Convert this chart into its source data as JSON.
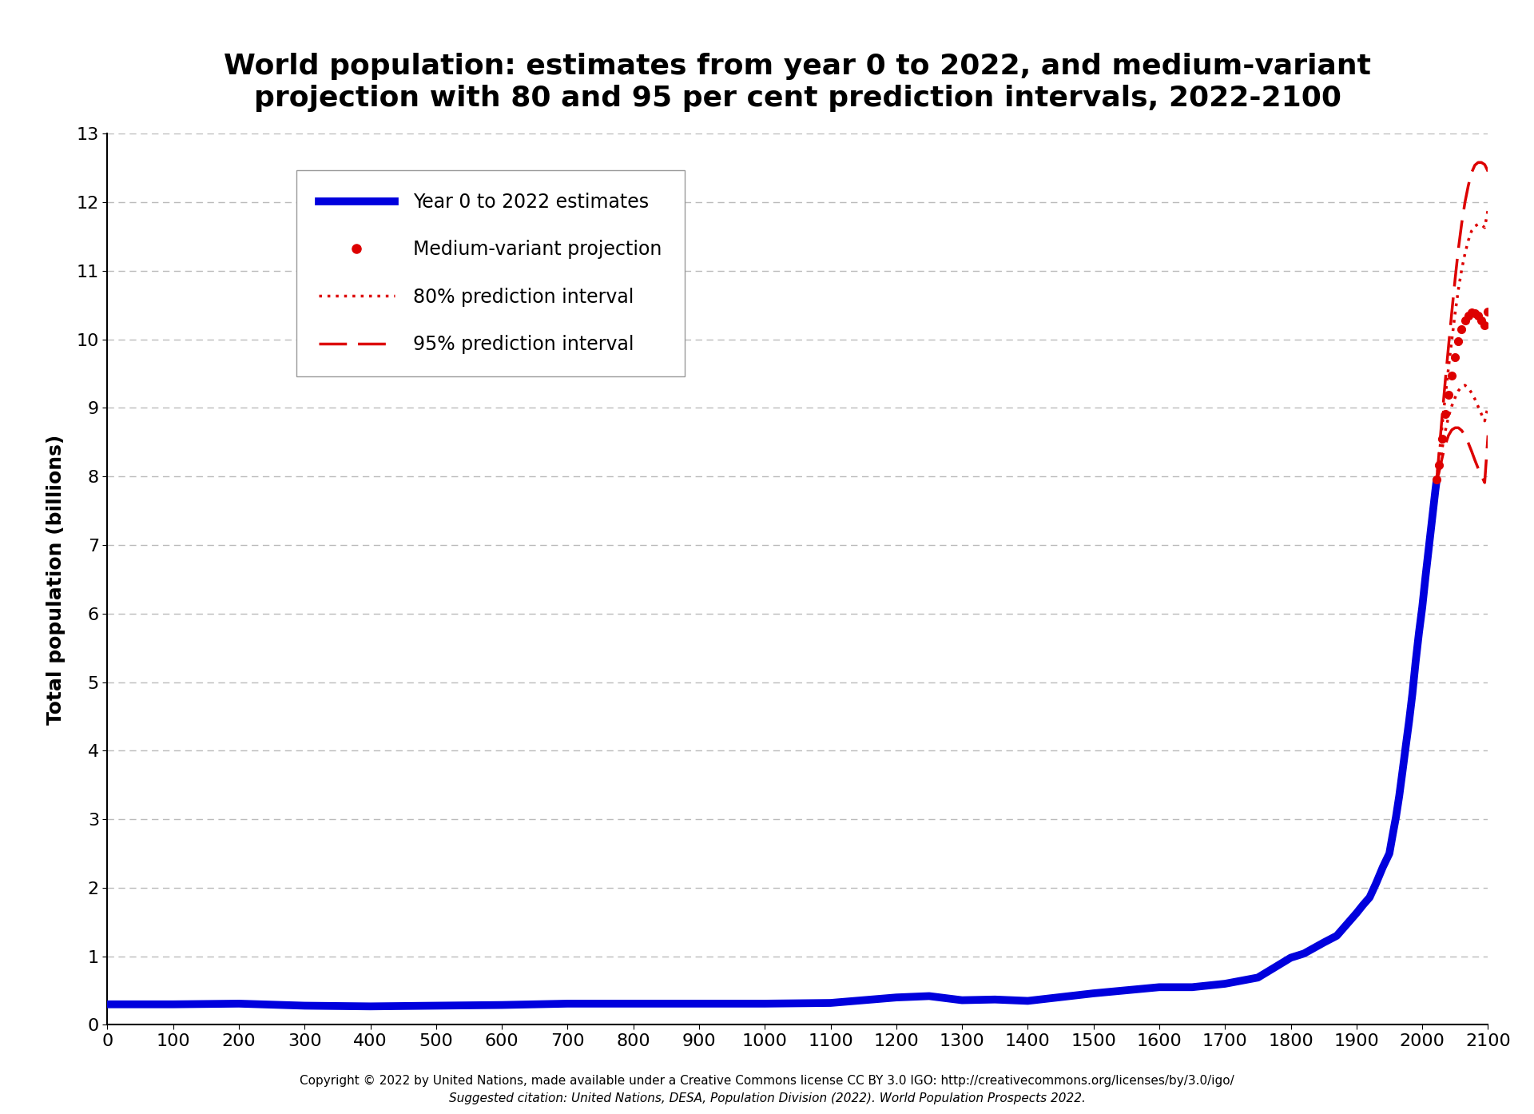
{
  "title": "World population: estimates from year 0 to 2022, and medium-variant\nprojection with 80 and 95 per cent prediction intervals, 2022-2100",
  "ylabel": "Total population (billions)",
  "xlabel": "",
  "xlim": [
    0,
    2100
  ],
  "ylim": [
    0,
    13
  ],
  "xticks": [
    0,
    100,
    200,
    300,
    400,
    500,
    600,
    700,
    800,
    900,
    1000,
    1100,
    1200,
    1300,
    1400,
    1500,
    1600,
    1700,
    1800,
    1900,
    2000,
    2100
  ],
  "yticks": [
    0,
    1,
    2,
    3,
    4,
    5,
    6,
    7,
    8,
    9,
    10,
    11,
    12,
    13
  ],
  "bg_color": "#ffffff",
  "grid_color": "#aaaaaa",
  "line_color_blue": "#0000dd",
  "line_color_red": "#dd0000",
  "title_fontsize": 26,
  "axis_label_fontsize": 18,
  "tick_fontsize": 16,
  "footer_line1": "Copyright © 2022 by United Nations, made available under a Creative Commons license CC BY 3.0 IGO: http://creativecommons.org/licenses/by/3.0/igo/",
  "footer_line2": "Suggested citation: United Nations, DESA, Population Division (2022). World Population Prospects 2022.",
  "legend_entries": [
    "Year 0 to 2022 estimates",
    "Medium-variant projection",
    "80% prediction interval",
    "95% prediction interval"
  ],
  "hist_years": [
    0,
    100,
    200,
    300,
    400,
    500,
    600,
    700,
    800,
    900,
    1000,
    1100,
    1200,
    1250,
    1300,
    1350,
    1400,
    1500,
    1600,
    1650,
    1700,
    1750,
    1800,
    1820,
    1850,
    1870,
    1900,
    1910,
    1920,
    1930,
    1940,
    1950,
    1955,
    1960,
    1965,
    1970,
    1975,
    1980,
    1985,
    1990,
    1995,
    2000,
    2005,
    2010,
    2015,
    2020,
    2022
  ],
  "hist_pop": [
    0.3,
    0.3,
    0.31,
    0.28,
    0.27,
    0.28,
    0.29,
    0.31,
    0.31,
    0.31,
    0.31,
    0.32,
    0.4,
    0.42,
    0.36,
    0.37,
    0.35,
    0.46,
    0.55,
    0.55,
    0.6,
    0.69,
    0.98,
    1.04,
    1.2,
    1.3,
    1.63,
    1.75,
    1.86,
    2.07,
    2.3,
    2.5,
    2.77,
    3.03,
    3.34,
    3.7,
    4.07,
    4.43,
    4.83,
    5.3,
    5.72,
    6.09,
    6.54,
    6.96,
    7.38,
    7.8,
    7.95
  ],
  "proj_years": [
    2022,
    2025,
    2030,
    2035,
    2040,
    2045,
    2050,
    2055,
    2060,
    2065,
    2070,
    2075,
    2080,
    2085,
    2090,
    2095,
    2100
  ],
  "proj_medium": [
    7.95,
    8.16,
    8.55,
    8.91,
    9.19,
    9.47,
    9.74,
    9.97,
    10.15,
    10.28,
    10.35,
    10.39,
    10.38,
    10.34,
    10.28,
    10.21,
    10.4
  ],
  "proj_80_upper": [
    7.95,
    8.23,
    8.72,
    9.17,
    9.59,
    9.99,
    10.38,
    10.73,
    11.02,
    11.25,
    11.44,
    11.58,
    11.65,
    11.68,
    11.67,
    11.63,
    11.89
  ],
  "proj_80_lower": [
    7.95,
    8.09,
    8.39,
    8.66,
    8.87,
    9.03,
    9.15,
    9.25,
    9.31,
    9.33,
    9.29,
    9.22,
    9.13,
    9.02,
    8.91,
    8.81,
    9.02
  ],
  "proj_95_upper": [
    7.95,
    8.28,
    8.85,
    9.39,
    9.9,
    10.4,
    10.88,
    11.32,
    11.69,
    12.0,
    12.24,
    12.43,
    12.54,
    12.58,
    12.58,
    12.55,
    12.45
  ],
  "proj_95_lower": [
    7.95,
    8.04,
    8.26,
    8.46,
    8.6,
    8.68,
    8.71,
    8.71,
    8.67,
    8.6,
    8.49,
    8.37,
    8.24,
    8.12,
    8.01,
    7.91,
    8.6
  ]
}
